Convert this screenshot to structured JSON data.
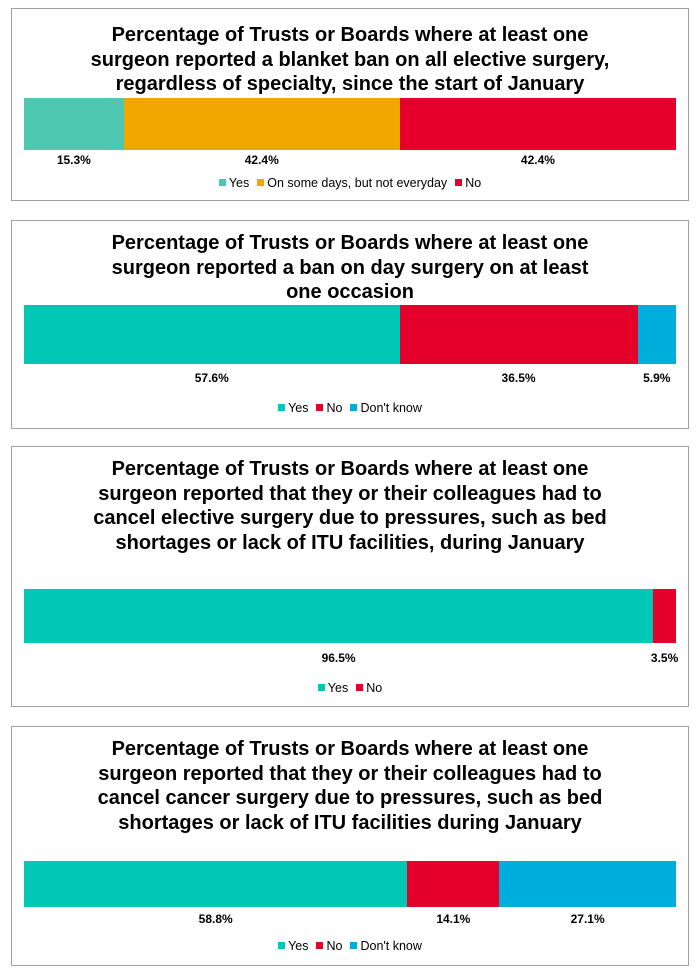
{
  "colors": {
    "yes_light": "#4DC7B0",
    "yes": "#00C8B4",
    "some_days": "#F0A800",
    "no": "#E4002B",
    "dont_know": "#00AEDB"
  },
  "chart_data": [
    {
      "type": "bar",
      "orientation": "horizontal",
      "stacked": true,
      "title": "Percentage of Trusts or Boards where at least one surgeon reported a blanket ban on all elective surgery, regardless of specialty, since the start of January",
      "title_lines": [
        "Percentage of Trusts or Boards where at least one",
        "surgeon reported a blanket ban on all elective surgery,",
        "regardless of specialty, since the start of January"
      ],
      "legend_position": "bottom",
      "series": [
        {
          "name": "Yes",
          "value": 15.3,
          "label": "15.3%",
          "color": "#4DC7B0"
        },
        {
          "name": "On some days, but not everyday",
          "value": 42.4,
          "label": "42.4%",
          "color": "#F0A800"
        },
        {
          "name": "No",
          "value": 42.4,
          "label": "42.4%",
          "color": "#E4002B"
        }
      ]
    },
    {
      "type": "bar",
      "orientation": "horizontal",
      "stacked": true,
      "title": "Percentage of Trusts or Boards where at least one surgeon reported a ban on day surgery on at least one occasion",
      "title_lines": [
        "Percentage of Trusts or Boards where at least one",
        "surgeon reported a ban on day surgery on at least",
        "one occasion"
      ],
      "legend_position": "bottom",
      "series": [
        {
          "name": "Yes",
          "value": 57.6,
          "label": "57.6%",
          "color": "#00C8B4"
        },
        {
          "name": "No",
          "value": 36.5,
          "label": "36.5%",
          "color": "#E4002B"
        },
        {
          "name": "Don't know",
          "value": 5.9,
          "label": "5.9%",
          "color": "#00AEDB"
        }
      ]
    },
    {
      "type": "bar",
      "orientation": "horizontal",
      "stacked": true,
      "title": "Percentage of Trusts or Boards where at least one surgeon reported that they or their colleagues had to cancel elective surgery due to pressures, such as bed shortages or lack of ITU facilities, during January",
      "title_lines": [
        "Percentage of Trusts or Boards where at least one",
        "surgeon reported that they or their colleagues had to",
        "cancel elective surgery due to pressures, such as bed",
        "shortages or lack of ITU facilities, during January"
      ],
      "legend_position": "bottom",
      "series": [
        {
          "name": "Yes",
          "value": 96.5,
          "label": "96.5%",
          "color": "#00C8B4"
        },
        {
          "name": "No",
          "value": 3.5,
          "label": "3.5%",
          "color": "#E4002B"
        }
      ]
    },
    {
      "type": "bar",
      "orientation": "horizontal",
      "stacked": true,
      "title": "Percentage of Trusts or Boards where at least one surgeon reported that they or their colleagues had to cancel cancer surgery due to pressures, such as bed shortages or lack of ITU facilities during January",
      "title_lines": [
        "Percentage of Trusts or Boards where at least one",
        "surgeon reported that they or their colleagues had to",
        "cancel cancer surgery due to pressures, such as bed",
        "shortages or lack of ITU facilities during January"
      ],
      "legend_position": "bottom",
      "series": [
        {
          "name": "Yes",
          "value": 58.8,
          "label": "58.8%",
          "color": "#00C8B4"
        },
        {
          "name": "No",
          "value": 14.1,
          "label": "14.1%",
          "color": "#E4002B"
        },
        {
          "name": "Don't know",
          "value": 27.1,
          "label": "27.1%",
          "color": "#00AEDB"
        }
      ]
    }
  ]
}
